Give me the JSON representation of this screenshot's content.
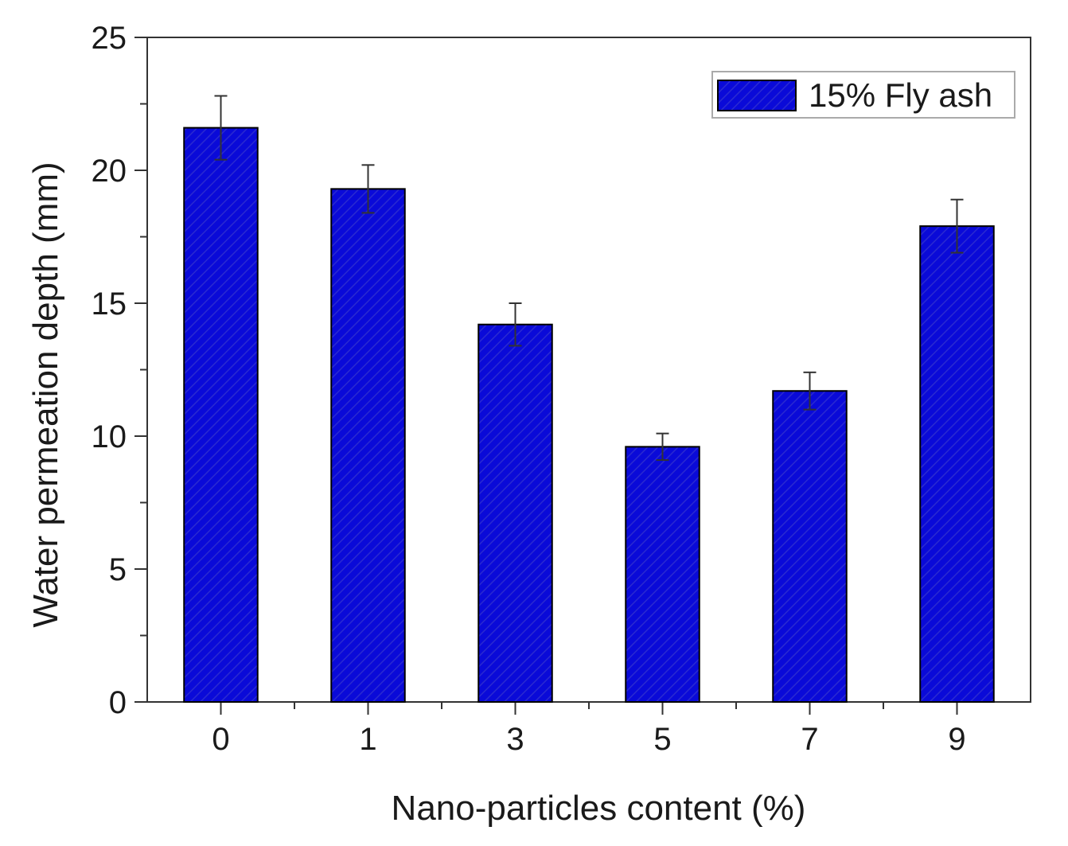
{
  "chart_data": {
    "type": "bar",
    "title": "",
    "xlabel": "Nano-particles content (%)",
    "ylabel": "Water permeation depth (mm)",
    "categories": [
      "0",
      "1",
      "3",
      "5",
      "7",
      "9"
    ],
    "series": [
      {
        "name": "15% Fly ash",
        "values": [
          21.6,
          19.3,
          14.2,
          9.6,
          11.7,
          17.9
        ],
        "errors": [
          1.2,
          0.9,
          0.8,
          0.5,
          0.7,
          1.0
        ],
        "color": "#0a0ad8",
        "pattern": "diagonal-hatch"
      }
    ],
    "ylim": [
      0,
      25
    ],
    "yticks": [
      0,
      5,
      10,
      15,
      20,
      25
    ],
    "yticks_minor_step": 2.5,
    "grid": false,
    "legend": {
      "position": "top-right"
    }
  }
}
